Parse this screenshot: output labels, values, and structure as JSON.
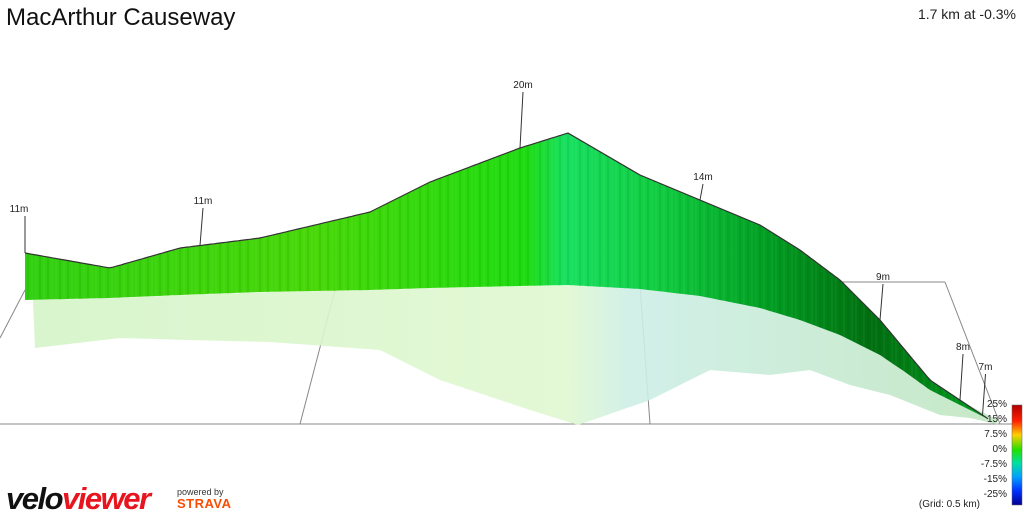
{
  "title": "MacArthur Causeway",
  "stats": "1.7 km at -0.3%",
  "branding": {
    "velo": "velo",
    "viewer": "viewer",
    "powered_by": "powered by",
    "strava": "STRAVA"
  },
  "grid_note": "(Grid: 0.5 km)",
  "colors": {
    "climb_green": "#22d400",
    "descent_green": "#00a020",
    "shadow": "#d6f2c8",
    "grid_line": "#888888"
  },
  "chart_data": {
    "type": "area",
    "ylabel": "",
    "xlabel": "",
    "distance_km": 1.7,
    "avg_gradient_pct": -0.3,
    "grid_spacing_km": 0.5,
    "elevation_profile": [
      {
        "d": 0.0,
        "elev": 11
      },
      {
        "d": 0.05,
        "elev": 10
      },
      {
        "d": 0.09,
        "elev": 9
      },
      {
        "d": 0.14,
        "elev": 10
      },
      {
        "d": 0.2,
        "elev": 11
      },
      {
        "d": 0.29,
        "elev": 11
      },
      {
        "d": 0.4,
        "elev": 12
      },
      {
        "d": 0.52,
        "elev": 13
      },
      {
        "d": 0.63,
        "elev": 15
      },
      {
        "d": 0.76,
        "elev": 18
      },
      {
        "d": 0.88,
        "elev": 20
      },
      {
        "d": 0.95,
        "elev": 19
      },
      {
        "d": 1.06,
        "elev": 17
      },
      {
        "d": 1.14,
        "elev": 14
      },
      {
        "d": 1.22,
        "elev": 12
      },
      {
        "d": 1.3,
        "elev": 11
      },
      {
        "d": 1.39,
        "elev": 9
      },
      {
        "d": 1.48,
        "elev": 8
      },
      {
        "d": 1.6,
        "elev": 7.5
      },
      {
        "d": 1.7,
        "elev": 7
      }
    ],
    "elevation_labels": [
      {
        "d": 0.0,
        "text": "11m"
      },
      {
        "d": 0.29,
        "text": "11m"
      },
      {
        "d": 0.88,
        "text": "20m"
      },
      {
        "d": 1.14,
        "text": "14m"
      },
      {
        "d": 1.39,
        "text": "9m"
      },
      {
        "d": 1.56,
        "text": "8m"
      },
      {
        "d": 1.65,
        "text": "7m"
      }
    ],
    "gradient_legend": [
      "25%",
      "15%",
      "7.5%",
      "0%",
      "-7.5%",
      "-15%",
      "-25%"
    ]
  }
}
